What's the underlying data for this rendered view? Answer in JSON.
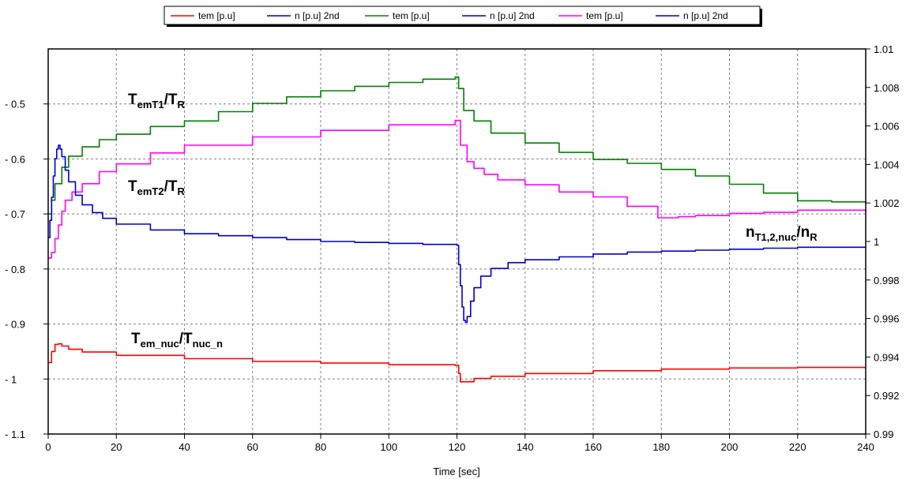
{
  "chart_data": {
    "type": "line",
    "xlabel": "Time [sec]",
    "xlim": [
      0,
      240
    ],
    "x_ticks": [
      0,
      20,
      40,
      60,
      80,
      100,
      120,
      140,
      160,
      180,
      200,
      220,
      240
    ],
    "y_left": {
      "lim": [
        -1.1,
        -0.4
      ],
      "ticks": [
        -0.5,
        -0.6,
        -0.7,
        -0.8,
        -0.9,
        -1.0,
        -1.1
      ],
      "tick_labels": [
        "- 0.5",
        "- 0.6",
        "- 0.7",
        "- 0.8",
        "- 0.9",
        "- 1",
        "- 1.1"
      ]
    },
    "y_right": {
      "lim": [
        0.99,
        1.01
      ],
      "ticks": [
        1.01,
        1.008,
        1.006,
        1.004,
        1.002,
        1.0,
        0.998,
        0.996,
        0.994,
        0.992,
        0.99
      ],
      "tick_labels": [
        "1.01",
        "1.008",
        "1.006",
        "1.004",
        "1.002",
        "1",
        "0.998",
        "0.996",
        "0.994",
        "0.992",
        "0.99"
      ]
    },
    "grid": true,
    "legend_position": "top-center",
    "legend": [
      {
        "label": "tem [p.u]",
        "color": "#ff0000"
      },
      {
        "label": "n [p.u] 2nd",
        "color": "#0000cc"
      },
      {
        "label": "tem [p.u]",
        "color": "#008000"
      },
      {
        "label": "n [p.u] 2nd",
        "color": "#0000cc"
      },
      {
        "label": "tem [p.u]",
        "color": "#ff00ff"
      },
      {
        "label": "n [p.u] 2nd",
        "color": "#0000cc"
      }
    ],
    "series": [
      {
        "axis": "left",
        "color": "#008000",
        "x": [
          0,
          1,
          2,
          4,
          6,
          10,
          15,
          20,
          30,
          40,
          50,
          60,
          70,
          80,
          90,
          100,
          110,
          119.5,
          120.5,
          122,
          125,
          130,
          140,
          150,
          160,
          170,
          180,
          190,
          200,
          210,
          220,
          230,
          240
        ],
        "y": [
          -0.7,
          -0.675,
          -0.645,
          -0.615,
          -0.595,
          -0.578,
          -0.565,
          -0.555,
          -0.541,
          -0.531,
          -0.514,
          -0.499,
          -0.487,
          -0.476,
          -0.468,
          -0.461,
          -0.455,
          -0.451,
          -0.472,
          -0.512,
          -0.531,
          -0.553,
          -0.571,
          -0.588,
          -0.601,
          -0.608,
          -0.619,
          -0.631,
          -0.646,
          -0.662,
          -0.676,
          -0.678,
          -0.681
        ]
      },
      {
        "axis": "left",
        "color": "#ff00ff",
        "x": [
          0,
          1,
          2,
          3,
          4,
          5,
          7,
          10,
          15,
          20,
          30,
          40,
          60,
          80,
          100,
          119.5,
          121,
          123,
          125,
          128,
          132,
          140,
          150,
          160,
          170,
          179,
          185,
          190,
          200,
          210,
          220,
          230,
          240
        ],
        "y": [
          -0.78,
          -0.77,
          -0.745,
          -0.72,
          -0.695,
          -0.675,
          -0.66,
          -0.645,
          -0.623,
          -0.609,
          -0.589,
          -0.575,
          -0.56,
          -0.548,
          -0.538,
          -0.53,
          -0.575,
          -0.605,
          -0.617,
          -0.628,
          -0.638,
          -0.647,
          -0.66,
          -0.669,
          -0.686,
          -0.707,
          -0.705,
          -0.703,
          -0.699,
          -0.697,
          -0.693,
          -0.693,
          -0.696
        ]
      },
      {
        "axis": "right",
        "color": "#0000cc",
        "x": [
          0,
          0.5,
          1,
          1.5,
          2,
          2.5,
          3,
          3.5,
          4,
          5,
          6,
          8,
          10,
          13,
          16,
          20,
          30,
          40,
          50,
          60,
          70,
          80,
          90,
          100,
          110,
          120,
          120.5,
          121,
          121.5,
          122,
          122.5,
          123,
          124,
          125,
          127,
          130,
          135,
          140,
          150,
          160,
          170,
          180,
          190,
          200,
          210,
          220,
          230,
          240
        ],
        "y": [
          1.0002,
          1.0011,
          1.0023,
          1.0034,
          1.0043,
          1.0048,
          1.005,
          1.0048,
          1.0044,
          1.0037,
          1.0031,
          1.0024,
          1.0019,
          1.0015,
          1.0012,
          1.0009,
          1.0006,
          1.0004,
          1.0003,
          1.0002,
          1.0001,
          1.0,
          0.99995,
          0.9999,
          0.99985,
          0.9998,
          0.9988,
          0.9977,
          0.9966,
          0.9959,
          0.9958,
          0.9961,
          0.9969,
          0.9976,
          0.9982,
          0.9986,
          0.9989,
          0.99905,
          0.9992,
          0.99935,
          0.99945,
          0.9995,
          0.99955,
          0.9996,
          0.99965,
          0.9997,
          0.9997,
          0.9997
        ]
      },
      {
        "axis": "left",
        "color": "#ff0000",
        "x": [
          0,
          1,
          2,
          3,
          4,
          6,
          10,
          20,
          40,
          60,
          80,
          100,
          119.5,
          120.5,
          121,
          123,
          125,
          130,
          140,
          160,
          180,
          200,
          220,
          240
        ],
        "y": [
          -0.97,
          -0.95,
          -0.937,
          -0.936,
          -0.94,
          -0.946,
          -0.951,
          -0.957,
          -0.963,
          -0.968,
          -0.971,
          -0.974,
          -0.975,
          -0.99,
          -1.005,
          -1.005,
          -0.999,
          -0.995,
          -0.99,
          -0.985,
          -0.982,
          -0.98,
          -0.979,
          -0.979
        ]
      }
    ],
    "annotations": [
      {
        "main": "T",
        "sub1": "emT1",
        "slash": "/T",
        "sub2": "R"
      },
      {
        "main": "T",
        "sub1": "emT2",
        "slash": "/T",
        "sub2": "R"
      },
      {
        "main": "n",
        "sub1": "T1,2,nuc",
        "slash": "/n",
        "sub2": "R"
      },
      {
        "main": "T",
        "sub1": "em_nuc",
        "slash": "/T",
        "sub2": "nuc_n"
      }
    ]
  }
}
